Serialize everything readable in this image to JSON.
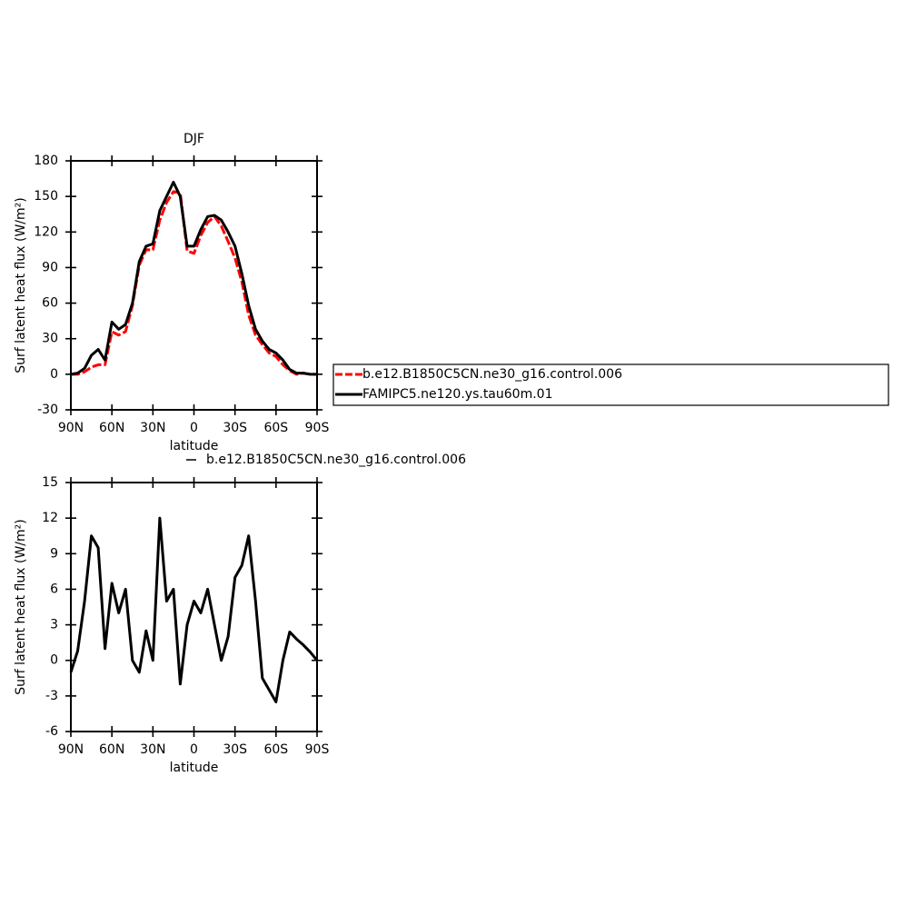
{
  "chart_data": [
    {
      "type": "line",
      "title": "DJF",
      "x_label": "latitude",
      "y_label": "Surf latent heat flux (W/m²)",
      "x": [
        90,
        85,
        80,
        75,
        70,
        65,
        60,
        55,
        50,
        45,
        40,
        35,
        30,
        25,
        20,
        15,
        10,
        5,
        0,
        -5,
        -10,
        -15,
        -20,
        -25,
        -30,
        -35,
        -40,
        -45,
        -50,
        -55,
        -60,
        -65,
        -70,
        -75,
        -80,
        -85,
        -90
      ],
      "series": [
        {
          "name": "b.e12.B1850C5CN.ne30_g16.control.006",
          "color": "#ff0000",
          "style": "dashed",
          "values": [
            0,
            0,
            2,
            6,
            8,
            8,
            36,
            33,
            36,
            58,
            92,
            105,
            105,
            130,
            145,
            154,
            153,
            104,
            102,
            117,
            128,
            133,
            125,
            112,
            98,
            78,
            50,
            33,
            25,
            18,
            15,
            8,
            3,
            0,
            1,
            0,
            0
          ]
        },
        {
          "name": "FAMIPC5.ne120.ys.tau60m.01",
          "color": "#000000",
          "style": "solid",
          "values": [
            0,
            1,
            5,
            16,
            21,
            12,
            44,
            38,
            42,
            60,
            95,
            108,
            110,
            138,
            150,
            162,
            150,
            108,
            108,
            122,
            133,
            134,
            130,
            120,
            108,
            85,
            58,
            38,
            28,
            21,
            18,
            12,
            4,
            1,
            1,
            0,
            0
          ]
        }
      ],
      "xlim": [
        90,
        -90
      ],
      "xticks": [
        {
          "value": 90,
          "label": "90N"
        },
        {
          "value": 60,
          "label": "60N"
        },
        {
          "value": 30,
          "label": "30N"
        },
        0,
        {
          "value": -30,
          "label": "30S"
        },
        {
          "value": -60,
          "label": "60S"
        },
        {
          "value": -90,
          "label": "90S"
        }
      ],
      "ylim": [
        -30,
        180
      ],
      "yticks": [
        -30,
        0,
        30,
        60,
        90,
        120,
        150,
        180
      ],
      "legend": "right"
    },
    {
      "type": "line",
      "x_label": "latitude",
      "y_label": "Surf latent heat flux (W/m²)",
      "x": [
        90,
        85,
        80,
        75,
        70,
        65,
        60,
        55,
        50,
        45,
        40,
        35,
        30,
        25,
        20,
        15,
        10,
        5,
        0,
        -5,
        -10,
        -15,
        -20,
        -25,
        -30,
        -35,
        -40,
        -45,
        -50,
        -55,
        -60,
        -65,
        -70,
        -75,
        -80,
        -85,
        -90
      ],
      "series": [
        {
          "name": "b.e12.B1850C5CN.ne30_g16.control.006",
          "color": "#000000",
          "style": "solid",
          "values": [
            -1,
            0.8,
            5,
            10.5,
            9.5,
            1,
            6.5,
            4,
            6,
            0,
            -1,
            2.5,
            0,
            12,
            5,
            6,
            -2,
            3,
            5,
            4,
            6,
            3,
            0,
            2,
            7,
            8,
            10.5,
            5,
            -1.5,
            -2.5,
            -3.5,
            0,
            2.4,
            1.8,
            1.3,
            0.7,
            0
          ]
        }
      ],
      "xlim": [
        90,
        -90
      ],
      "xticks": [
        {
          "value": 90,
          "label": "90N"
        },
        {
          "value": 60,
          "label": "60N"
        },
        {
          "value": 30,
          "label": "30N"
        },
        0,
        {
          "value": -30,
          "label": "30S"
        },
        {
          "value": -60,
          "label": "60S"
        },
        {
          "value": -90,
          "label": "90S"
        }
      ],
      "ylim": [
        -6,
        15
      ],
      "yticks": [
        -6,
        -3,
        0,
        3,
        6,
        9,
        12,
        15
      ],
      "legend": "top"
    }
  ]
}
